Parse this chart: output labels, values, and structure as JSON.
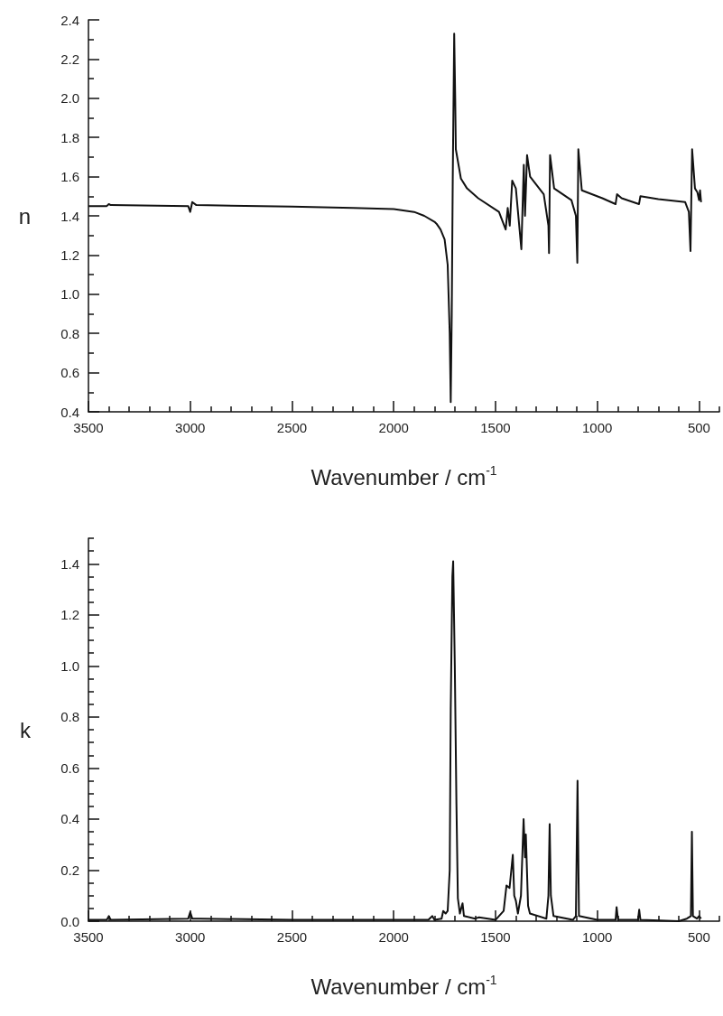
{
  "chart_data": [
    {
      "type": "line",
      "xlabel": "Wavenumber / cm$^{-1}$",
      "ylabel": "n",
      "grid": false,
      "xlim": [
        3500,
        400
      ],
      "ylim": [
        0.4,
        2.4
      ],
      "xticks": [
        3500,
        3000,
        2500,
        2000,
        1500,
        1000,
        500,
        {
          "value": 3400,
          "label": null
        },
        {
          "value": 3300,
          "label": null
        },
        {
          "value": 3200,
          "label": null
        },
        {
          "value": 3100,
          "label": null
        },
        {
          "value": 2900,
          "label": null
        },
        {
          "value": 2800,
          "label": null
        },
        {
          "value": 2700,
          "label": null
        },
        {
          "value": 2600,
          "label": null
        },
        {
          "value": 2400,
          "label": null
        },
        {
          "value": 2300,
          "label": null
        },
        {
          "value": 2200,
          "label": null
        },
        {
          "value": 2100,
          "label": null
        },
        {
          "value": 1900,
          "label": null
        },
        {
          "value": 1800,
          "label": null
        },
        {
          "value": 1700,
          "label": null
        },
        {
          "value": 1600,
          "label": null
        },
        {
          "value": 1400,
          "label": null
        },
        {
          "value": 1300,
          "label": null
        },
        {
          "value": 1200,
          "label": null
        },
        {
          "value": 1100,
          "label": null
        },
        {
          "value": 900,
          "label": null
        },
        {
          "value": 800,
          "label": null
        },
        {
          "value": 700,
          "label": null
        },
        {
          "value": 600,
          "label": null
        },
        {
          "value": 400,
          "label": null
        }
      ],
      "yticks": [
        0.4,
        0.6,
        0.8,
        {
          "value": 1.0,
          "label": "1.0"
        },
        1.2,
        1.4,
        1.6,
        1.8,
        {
          "value": 2.0,
          "label": "2.0"
        },
        2.2,
        2.4,
        {
          "value": 0.5,
          "label": null
        },
        {
          "value": 0.7,
          "label": null
        },
        {
          "value": 0.9,
          "label": null
        },
        {
          "value": 1.1,
          "label": null
        },
        {
          "value": 1.3,
          "label": null
        },
        {
          "value": 1.5,
          "label": null
        },
        {
          "value": 1.7,
          "label": null
        },
        {
          "value": 1.9,
          "label": null
        },
        {
          "value": 2.1,
          "label": null
        },
        {
          "value": 2.3,
          "label": null
        }
      ],
      "series": [
        {
          "color": "#111111",
          "x": [
            3500,
            3410,
            3400,
            3390,
            3010,
            3000,
            2990,
            2970,
            2500,
            2200,
            2000,
            1900,
            1850,
            1800,
            1790,
            1770,
            1750,
            1735,
            1725,
            1720,
            1715,
            1710,
            1703,
            1698,
            1695,
            1680,
            1670,
            1640,
            1585,
            1483,
            1450,
            1440,
            1430,
            1418,
            1400,
            1373,
            1361,
            1355,
            1345,
            1330,
            1263,
            1240,
            1237,
            1232,
            1212,
            1127,
            1105,
            1098,
            1093,
            1076,
            975,
            910,
            903,
            880,
            795,
            788,
            700,
            568,
            550,
            542,
            534,
            520,
            508,
            500,
            495,
            490
          ],
          "values": [
            1.45,
            1.45,
            1.46,
            1.455,
            1.45,
            1.42,
            1.47,
            1.455,
            1.447,
            1.44,
            1.435,
            1.42,
            1.4,
            1.37,
            1.36,
            1.33,
            1.28,
            1.15,
            0.8,
            0.45,
            0.9,
            1.6,
            2.33,
            2.0,
            1.74,
            1.65,
            1.59,
            1.54,
            1.49,
            1.42,
            1.33,
            1.44,
            1.35,
            1.58,
            1.54,
            1.23,
            1.66,
            1.4,
            1.71,
            1.6,
            1.51,
            1.35,
            1.21,
            1.71,
            1.54,
            1.48,
            1.4,
            1.16,
            1.74,
            1.53,
            1.49,
            1.46,
            1.51,
            1.49,
            1.46,
            1.5,
            1.485,
            1.47,
            1.42,
            1.22,
            1.74,
            1.54,
            1.52,
            1.48,
            1.53,
            1.47
          ]
        }
      ]
    },
    {
      "type": "line",
      "xlabel": "Wavenumber / cm$^{-1}$",
      "ylabel": "k",
      "grid": false,
      "xlim": [
        3500,
        400
      ],
      "ylim": [
        0,
        1.5
      ],
      "xticks": [
        3500,
        3000,
        2500,
        2000,
        1500,
        1000,
        500,
        {
          "value": 3400,
          "label": null
        },
        {
          "value": 3300,
          "label": null
        },
        {
          "value": 3200,
          "label": null
        },
        {
          "value": 3100,
          "label": null
        },
        {
          "value": 2900,
          "label": null
        },
        {
          "value": 2800,
          "label": null
        },
        {
          "value": 2700,
          "label": null
        },
        {
          "value": 2600,
          "label": null
        },
        {
          "value": 2400,
          "label": null
        },
        {
          "value": 2300,
          "label": null
        },
        {
          "value": 2200,
          "label": null
        },
        {
          "value": 2100,
          "label": null
        },
        {
          "value": 1900,
          "label": null
        },
        {
          "value": 1800,
          "label": null
        },
        {
          "value": 1700,
          "label": null
        },
        {
          "value": 1600,
          "label": null
        },
        {
          "value": 1400,
          "label": null
        },
        {
          "value": 1300,
          "label": null
        },
        {
          "value": 1200,
          "label": null
        },
        {
          "value": 1100,
          "label": null
        },
        {
          "value": 900,
          "label": null
        },
        {
          "value": 800,
          "label": null
        },
        {
          "value": 700,
          "label": null
        },
        {
          "value": 600,
          "label": null
        },
        {
          "value": 400,
          "label": null
        }
      ],
      "yticks": [
        {
          "value": 0,
          "label": "0.0"
        },
        0.2,
        0.4,
        0.6,
        0.8,
        {
          "value": 1.0,
          "label": "1.0"
        },
        1.2,
        1.4,
        {
          "value": 0.05,
          "label": null
        },
        {
          "value": 0.1,
          "label": null
        },
        {
          "value": 0.15,
          "label": null
        },
        {
          "value": 0.25,
          "label": null
        },
        {
          "value": 0.3,
          "label": null
        },
        {
          "value": 0.35,
          "label": null
        },
        {
          "value": 0.45,
          "label": null
        },
        {
          "value": 0.5,
          "label": null
        },
        {
          "value": 0.55,
          "label": null
        },
        {
          "value": 0.65,
          "label": null
        },
        {
          "value": 0.7,
          "label": null
        },
        {
          "value": 0.75,
          "label": null
        },
        {
          "value": 0.85,
          "label": null
        },
        {
          "value": 0.9,
          "label": null
        },
        {
          "value": 0.95,
          "label": null
        },
        {
          "value": 1.05,
          "label": null
        },
        {
          "value": 1.1,
          "label": null
        },
        {
          "value": 1.15,
          "label": null
        },
        {
          "value": 1.25,
          "label": null
        },
        {
          "value": 1.3,
          "label": null
        },
        {
          "value": 1.35,
          "label": null
        },
        {
          "value": 1.45,
          "label": null
        },
        {
          "value": 1.5,
          "label": null
        }
      ],
      "series": [
        {
          "color": "#111111",
          "x": [
            3500,
            3410,
            3400,
            3390,
            3010,
            3000,
            2990,
            2950,
            2500,
            2000,
            1830,
            1810,
            1800,
            1765,
            1757,
            1745,
            1735,
            1725,
            1720,
            1712,
            1708,
            1700,
            1692,
            1685,
            1675,
            1662,
            1655,
            1600,
            1581,
            1500,
            1460,
            1446,
            1431,
            1415,
            1408,
            1400,
            1390,
            1375,
            1362,
            1355,
            1351,
            1340,
            1331,
            1250,
            1240,
            1234,
            1228,
            1215,
            1120,
            1105,
            1097,
            1090,
            1000,
            910,
            905,
            898,
            800,
            794,
            788,
            600,
            560,
            540,
            535,
            530,
            510,
            500,
            490
          ],
          "values": [
            0.005,
            0.005,
            0.02,
            0.005,
            0.01,
            0.035,
            0.01,
            0.01,
            0.005,
            0.005,
            0.005,
            0.02,
            0.005,
            0.01,
            0.04,
            0.03,
            0.04,
            0.2,
            0.83,
            1.35,
            1.41,
            1.0,
            0.46,
            0.09,
            0.03,
            0.07,
            0.02,
            0.01,
            0.015,
            0.005,
            0.04,
            0.14,
            0.13,
            0.26,
            0.1,
            0.08,
            0.03,
            0.1,
            0.4,
            0.25,
            0.34,
            0.06,
            0.03,
            0.01,
            0.1,
            0.38,
            0.1,
            0.02,
            0.005,
            0.02,
            0.55,
            0.02,
            0.005,
            0.005,
            0.055,
            0.005,
            0.005,
            0.045,
            0.005,
            0.0,
            0.01,
            0.02,
            0.35,
            0.02,
            0.01,
            0.02,
            0.01
          ]
        }
      ]
    }
  ]
}
